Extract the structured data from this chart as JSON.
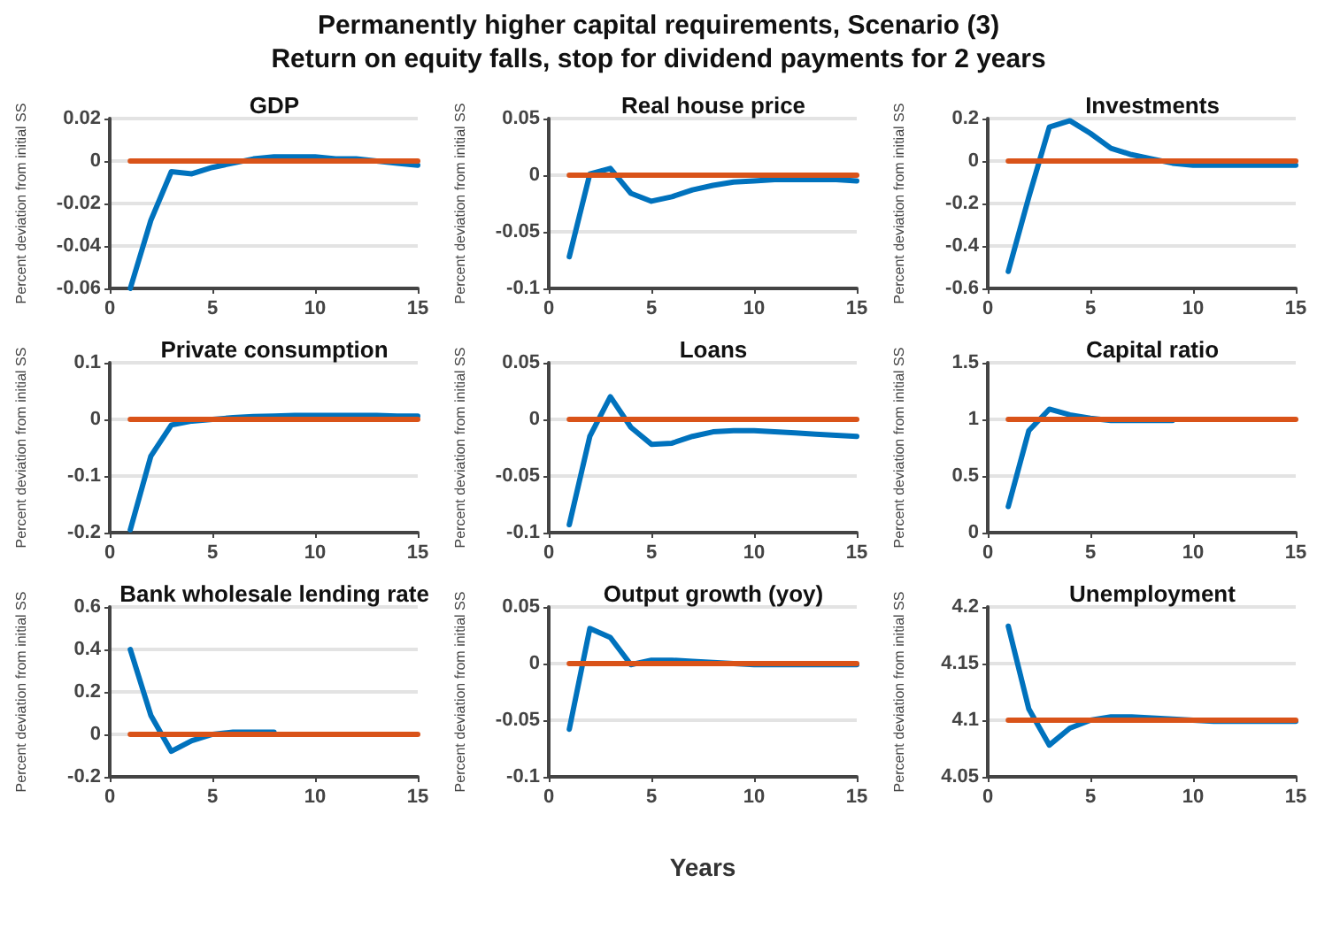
{
  "chart_data": [
    {
      "type": "other",
      "title": "Permanently higher capital requirements, Scenario (3)",
      "subtitle": "Return on equity falls, stop for dividend payments for 2 years"
    },
    {
      "type": "line",
      "title": "GDP",
      "ylabel": "Percent deviation from initial SS",
      "x": [
        1,
        2,
        3,
        4,
        5,
        6,
        7,
        8,
        9,
        10,
        11,
        12,
        13,
        14,
        15
      ],
      "xlim": [
        0,
        15
      ],
      "xticks": [
        0,
        5,
        10,
        15
      ],
      "ylim": [
        -0.06,
        0.02
      ],
      "yticks": [
        -0.06,
        -0.04,
        -0.02,
        0,
        0.02
      ],
      "grid": "y",
      "series": [
        {
          "color": "#0072bd",
          "values": [
            -0.06,
            -0.028,
            -0.005,
            -0.006,
            -0.003,
            -0.001,
            0.001,
            0.002,
            0.002,
            0.002,
            0.001,
            0.001,
            0,
            -0.001,
            -0.002
          ]
        },
        {
          "color": "#d95319",
          "values": [
            0,
            0,
            0,
            0,
            0,
            0,
            0,
            0,
            0,
            0,
            0,
            0,
            0,
            0,
            0
          ]
        }
      ]
    },
    {
      "type": "line",
      "title": "Real house price",
      "ylabel": "Percent deviation from initial SS",
      "x": [
        1,
        2,
        3,
        4,
        5,
        6,
        7,
        8,
        9,
        10,
        11,
        12,
        13,
        14,
        15
      ],
      "xlim": [
        0,
        15
      ],
      "xticks": [
        0,
        5,
        10,
        15
      ],
      "ylim": [
        -0.1,
        0.05
      ],
      "yticks": [
        -0.1,
        -0.05,
        0,
        0.05
      ],
      "grid": "y",
      "series": [
        {
          "color": "#0072bd",
          "values": [
            -0.072,
            0.001,
            0.006,
            -0.016,
            -0.023,
            -0.019,
            -0.013,
            -0.009,
            -0.006,
            -0.005,
            -0.004,
            -0.004,
            -0.004,
            -0.004,
            -0.005
          ]
        },
        {
          "color": "#d95319",
          "values": [
            0,
            0,
            0,
            0,
            0,
            0,
            0,
            0,
            0,
            0,
            0,
            0,
            0,
            0,
            0
          ]
        }
      ]
    },
    {
      "type": "line",
      "title": "Investments",
      "ylabel": "Percent deviation from initial SS",
      "x": [
        1,
        2,
        3,
        4,
        5,
        6,
        7,
        8,
        9,
        10,
        11,
        12,
        13,
        14,
        15
      ],
      "xlim": [
        0,
        15
      ],
      "xticks": [
        0,
        5,
        10,
        15
      ],
      "ylim": [
        -0.6,
        0.2
      ],
      "yticks": [
        -0.6,
        -0.4,
        -0.2,
        0,
        0.2
      ],
      "grid": "y",
      "series": [
        {
          "color": "#0072bd",
          "values": [
            -0.52,
            -0.17,
            0.16,
            0.19,
            0.13,
            0.06,
            0.03,
            0.01,
            -0.01,
            -0.02,
            -0.02,
            -0.02,
            -0.02,
            -0.02,
            -0.02
          ]
        },
        {
          "color": "#d95319",
          "values": [
            0,
            0,
            0,
            0,
            0,
            0,
            0,
            0,
            0,
            0,
            0,
            0,
            0,
            0,
            0
          ]
        }
      ]
    },
    {
      "type": "line",
      "title": "Private consumption",
      "ylabel": "Percent deviation from initial SS",
      "x": [
        1,
        2,
        3,
        4,
        5,
        6,
        7,
        8,
        9,
        10,
        11,
        12,
        13,
        14,
        15
      ],
      "xlim": [
        0,
        15
      ],
      "xticks": [
        0,
        5,
        10,
        15
      ],
      "ylim": [
        -0.2,
        0.1
      ],
      "yticks": [
        -0.2,
        -0.1,
        0,
        0.1
      ],
      "grid": "y",
      "series": [
        {
          "color": "#0072bd",
          "values": [
            -0.195,
            -0.065,
            -0.01,
            -0.003,
            0,
            0.003,
            0.005,
            0.006,
            0.007,
            0.007,
            0.007,
            0.007,
            0.007,
            0.006,
            0.006
          ]
        },
        {
          "color": "#d95319",
          "values": [
            0,
            0,
            0,
            0,
            0,
            0,
            0,
            0,
            0,
            0,
            0,
            0,
            0,
            0,
            0
          ]
        }
      ]
    },
    {
      "type": "line",
      "title": "Loans",
      "ylabel": "Percent deviation from initial SS",
      "x": [
        1,
        2,
        3,
        4,
        5,
        6,
        7,
        8,
        9,
        10,
        11,
        12,
        13,
        14,
        15
      ],
      "xlim": [
        0,
        15
      ],
      "xticks": [
        0,
        5,
        10,
        15
      ],
      "ylim": [
        -0.1,
        0.05
      ],
      "yticks": [
        -0.1,
        -0.05,
        0,
        0.05
      ],
      "grid": "y",
      "series": [
        {
          "color": "#0072bd",
          "values": [
            -0.093,
            -0.015,
            0.02,
            -0.007,
            -0.022,
            -0.021,
            -0.015,
            -0.011,
            -0.01,
            -0.01,
            -0.011,
            -0.012,
            -0.013,
            -0.014,
            -0.015
          ]
        },
        {
          "color": "#d95319",
          "values": [
            0,
            0,
            0,
            0,
            0,
            0,
            0,
            0,
            0,
            0,
            0,
            0,
            0,
            0,
            0
          ]
        }
      ]
    },
    {
      "type": "line",
      "title": "Capital ratio",
      "ylabel": "Percent deviation from initial SS",
      "x": [
        1,
        2,
        3,
        4,
        5,
        6,
        7,
        8,
        9,
        10,
        11,
        12,
        13,
        14,
        15
      ],
      "xlim": [
        0,
        15
      ],
      "xticks": [
        0,
        5,
        10,
        15
      ],
      "ylim": [
        0,
        1.5
      ],
      "yticks": [
        0,
        0.5,
        1,
        1.5
      ],
      "grid": "y",
      "series": [
        {
          "color": "#0072bd",
          "values": [
            0.23,
            0.9,
            1.09,
            1.04,
            1.01,
            0.99,
            0.99,
            0.99,
            0.99,
            null,
            null,
            null,
            null,
            null,
            null
          ]
        },
        {
          "color": "#d95319",
          "values": [
            1,
            1,
            1,
            1,
            1,
            1,
            1,
            1,
            1,
            1,
            1,
            1,
            1,
            1,
            1
          ]
        }
      ]
    },
    {
      "type": "line",
      "title": "Bank wholesale lending rate",
      "ylabel": "Percent deviation from initial SS",
      "x": [
        1,
        2,
        3,
        4,
        5,
        6,
        7,
        8,
        9,
        10,
        11,
        12,
        13,
        14,
        15
      ],
      "xlim": [
        0,
        15
      ],
      "xticks": [
        0,
        5,
        10,
        15
      ],
      "ylim": [
        -0.2,
        0.6
      ],
      "yticks": [
        -0.2,
        0,
        0.2,
        0.4,
        0.6
      ],
      "grid": "y",
      "series": [
        {
          "color": "#0072bd",
          "values": [
            0.4,
            0.09,
            -0.08,
            -0.03,
            0,
            0.01,
            0.01,
            0.01,
            null,
            null,
            null,
            null,
            null,
            null,
            null
          ]
        },
        {
          "color": "#d95319",
          "values": [
            0,
            0,
            0,
            0,
            0,
            0,
            0,
            0,
            0,
            0,
            0,
            0,
            0,
            0,
            0
          ]
        }
      ]
    },
    {
      "type": "line",
      "title": "Output growth (yoy)",
      "ylabel": "Percent deviation from initial SS",
      "xlabel": "Years",
      "x": [
        1,
        2,
        3,
        4,
        5,
        6,
        7,
        8,
        9,
        10,
        11,
        12,
        13,
        14,
        15
      ],
      "xlim": [
        0,
        15
      ],
      "xticks": [
        0,
        5,
        10,
        15
      ],
      "ylim": [
        -0.1,
        0.05
      ],
      "yticks": [
        -0.1,
        -0.05,
        0,
        0.05
      ],
      "grid": "y",
      "series": [
        {
          "color": "#0072bd",
          "values": [
            -0.058,
            0.031,
            0.023,
            -0.001,
            0.003,
            0.003,
            0.002,
            0.001,
            0,
            -0.001,
            -0.001,
            -0.001,
            -0.001,
            -0.001,
            -0.001
          ]
        },
        {
          "color": "#d95319",
          "values": [
            0,
            0,
            0,
            0,
            0,
            0,
            0,
            0,
            0,
            0,
            0,
            0,
            0,
            0,
            0
          ]
        }
      ]
    },
    {
      "type": "line",
      "title": "Unemployment",
      "ylabel": "Percent deviation from initial SS",
      "x": [
        1,
        2,
        3,
        4,
        5,
        6,
        7,
        8,
        9,
        10,
        11,
        12,
        13,
        14,
        15
      ],
      "xlim": [
        0,
        15
      ],
      "xticks": [
        0,
        5,
        10,
        15
      ],
      "ylim": [
        4.05,
        4.2
      ],
      "yticks": [
        4.05,
        4.1,
        4.15,
        4.2
      ],
      "grid": "y",
      "series": [
        {
          "color": "#0072bd",
          "values": [
            4.183,
            4.11,
            4.078,
            4.093,
            4.1,
            4.103,
            4.103,
            4.102,
            4.101,
            4.1,
            4.099,
            4.099,
            4.099,
            4.099,
            4.099
          ]
        },
        {
          "color": "#d95319",
          "values": [
            4.1,
            4.1,
            4.1,
            4.1,
            4.1,
            4.1,
            4.1,
            4.1,
            4.1,
            4.1,
            4.1,
            4.1,
            4.1,
            4.1,
            4.1
          ]
        }
      ]
    }
  ]
}
